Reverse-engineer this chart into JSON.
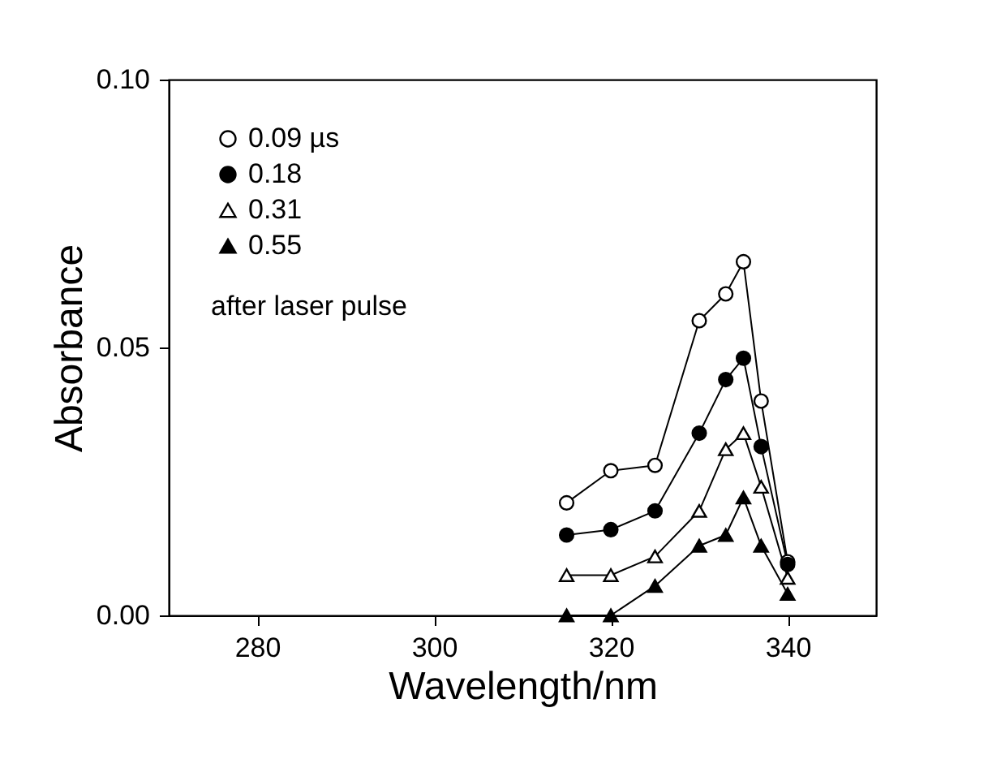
{
  "chart_data": {
    "type": "line",
    "xlabel": "Wavelength/nm",
    "ylabel": "Absorbance",
    "x": [
      315,
      320,
      325,
      330,
      333,
      335,
      337,
      340
    ],
    "xlim": [
      270,
      350
    ],
    "xticks": [
      280,
      300,
      320,
      340
    ],
    "ylim": [
      0,
      0.1
    ],
    "yticks": [
      {
        "value": 0,
        "label": "0.00"
      },
      {
        "value": 0.05,
        "label": "0.05"
      },
      {
        "value": 0.1,
        "label": "0.10"
      }
    ],
    "legend": "top left",
    "grid": false,
    "series": [
      {
        "name": "0.09 µs",
        "color": "#ffffff",
        "marker": "circle",
        "values": [
          0.021,
          0.027,
          0.028,
          0.055,
          0.06,
          0.066,
          0.04,
          0.01
        ]
      },
      {
        "name": "0.18",
        "color": "#000000",
        "marker": "circle",
        "values": [
          0.015,
          0.016,
          0.0195,
          0.034,
          0.044,
          0.048,
          0.0315,
          0.0095
        ]
      },
      {
        "name": "0.31",
        "color": "#ffffff",
        "marker": "triangle",
        "values": [
          0.0075,
          0.0075,
          0.011,
          0.0195,
          0.031,
          0.034,
          0.024,
          0.007
        ]
      },
      {
        "name": "0.55",
        "color": "#000000",
        "marker": "triangle",
        "values": [
          0,
          0,
          0.0055,
          0.013,
          0.015,
          0.022,
          0.013,
          0.004
        ]
      }
    ],
    "annotations": [
      "after laser pulse"
    ]
  }
}
